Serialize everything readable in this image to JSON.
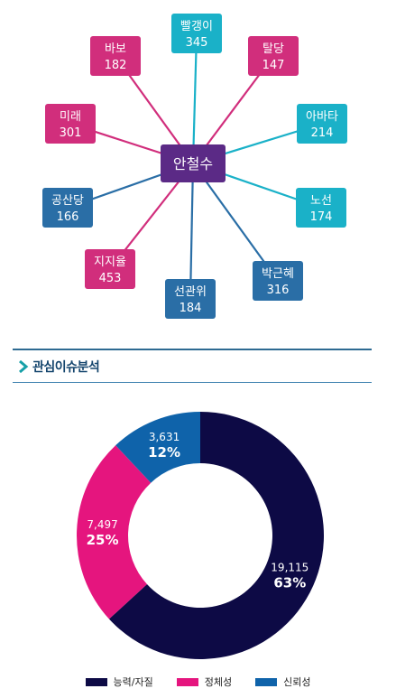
{
  "chart_data": [
    {
      "type": "network",
      "center": {
        "label": "안철수",
        "color": "#5b2a86"
      },
      "nodes": [
        {
          "label": "빨갱이",
          "value": "345",
          "color": "#1ab1c8"
        },
        {
          "label": "탈당",
          "value": "147",
          "color": "#d12e7c"
        },
        {
          "label": "아바타",
          "value": "214",
          "color": "#1ab1c8"
        },
        {
          "label": "노선",
          "value": "174",
          "color": "#1ab1c8"
        },
        {
          "label": "박근혜",
          "value": "316",
          "color": "#2a6ea6"
        },
        {
          "label": "선관위",
          "value": "184",
          "color": "#2a6ea6"
        },
        {
          "label": "지지율",
          "value": "453",
          "color": "#d12e7c"
        },
        {
          "label": "공산당",
          "value": "166",
          "color": "#2a6ea6"
        },
        {
          "label": "미래",
          "value": "301",
          "color": "#d12e7c"
        },
        {
          "label": "바보",
          "value": "182",
          "color": "#d12e7c"
        }
      ]
    },
    {
      "type": "pie",
      "title": "관심이슈분석",
      "slices": [
        {
          "name": "능력/자질",
          "value": 19115,
          "value_label": "19,115",
          "percent": "63%",
          "color": "#0d0a45"
        },
        {
          "name": "정체성",
          "value": 7497,
          "value_label": "7,497",
          "percent": "25%",
          "color": "#e5157e"
        },
        {
          "name": "신뢰성",
          "value": 3631,
          "value_label": "3,631",
          "percent": "12%",
          "color": "#0f63aa"
        }
      ]
    }
  ]
}
